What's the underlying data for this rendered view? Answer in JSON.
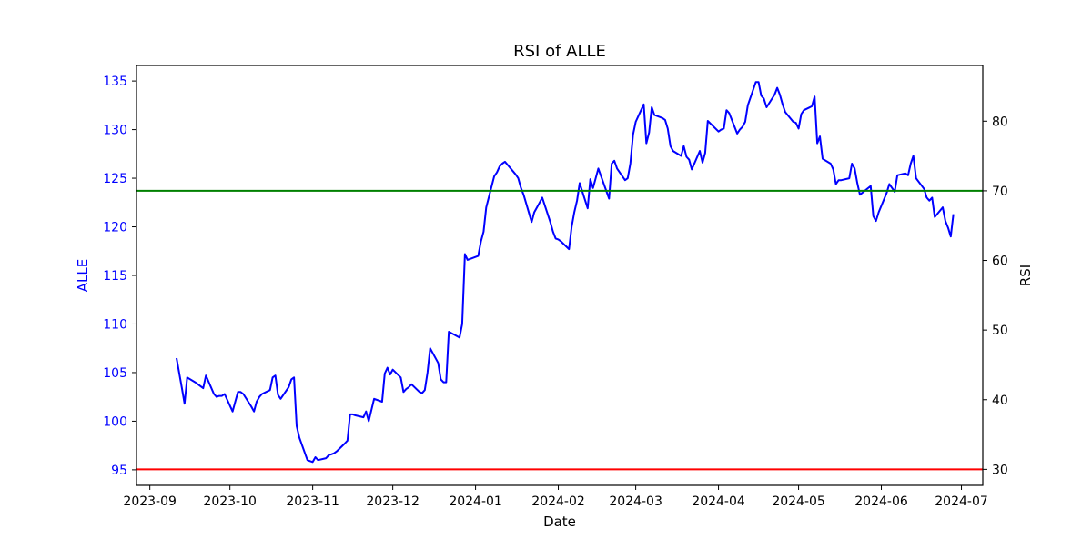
{
  "chart_data": {
    "type": "line",
    "title": "RSI of ALLE",
    "xlabel": "Date",
    "ylabel_left": "ALLE",
    "ylabel_right": "RSI",
    "x_ticks": [
      "2023-09",
      "2023-10",
      "2023-11",
      "2023-12",
      "2024-01",
      "2024-02",
      "2024-03",
      "2024-04",
      "2024-05",
      "2024-06",
      "2024-07"
    ],
    "xlim": [
      "2023-08-27",
      "2024-07-09"
    ],
    "y_left_ticks": [
      95,
      100,
      105,
      110,
      115,
      120,
      125,
      130,
      135
    ],
    "y_left_lim": [
      93.4,
      136.6
    ],
    "y_right_ticks": [
      30,
      40,
      50,
      60,
      70,
      80
    ],
    "y_right_lim": [
      27.7,
      88.0
    ],
    "reference_lines": [
      {
        "value": 70,
        "axis": "right",
        "color": "#008000"
      },
      {
        "value": 30,
        "axis": "right",
        "color": "#ff0000"
      }
    ],
    "colors": {
      "price": "#0000ff",
      "rsi": "#000000",
      "left_axis_text": "#0000ff"
    },
    "series": [
      {
        "axis": "left",
        "color": "#0000ff",
        "points": [
          [
            "2023-09-11",
            106.5
          ],
          [
            "2023-09-13",
            103.4
          ],
          [
            "2023-09-14",
            101.8
          ],
          [
            "2023-09-15",
            104.5
          ],
          [
            "2023-09-18",
            104.0
          ],
          [
            "2023-09-19",
            103.8
          ],
          [
            "2023-09-20",
            103.6
          ],
          [
            "2023-09-21",
            103.4
          ],
          [
            "2023-09-22",
            104.7
          ],
          [
            "2023-09-25",
            102.8
          ],
          [
            "2023-09-26",
            102.5
          ],
          [
            "2023-09-27",
            102.6
          ],
          [
            "2023-09-28",
            102.6
          ],
          [
            "2023-09-29",
            102.8
          ],
          [
            "2023-10-02",
            101.0
          ],
          [
            "2023-10-03",
            102.0
          ],
          [
            "2023-10-04",
            103.0
          ],
          [
            "2023-10-05",
            103.0
          ],
          [
            "2023-10-06",
            102.8
          ],
          [
            "2023-10-09",
            101.5
          ],
          [
            "2023-10-10",
            101.0
          ],
          [
            "2023-10-11",
            102.0
          ],
          [
            "2023-10-12",
            102.5
          ],
          [
            "2023-10-13",
            102.8
          ],
          [
            "2023-10-16",
            103.2
          ],
          [
            "2023-10-17",
            104.5
          ],
          [
            "2023-10-18",
            104.7
          ],
          [
            "2023-10-19",
            102.7
          ],
          [
            "2023-10-20",
            102.3
          ],
          [
            "2023-10-23",
            103.5
          ],
          [
            "2023-10-24",
            104.3
          ],
          [
            "2023-10-25",
            104.5
          ],
          [
            "2023-10-26",
            99.5
          ],
          [
            "2023-10-27",
            98.3
          ],
          [
            "2023-10-30",
            96.0
          ],
          [
            "2023-10-31",
            95.9
          ],
          [
            "2023-11-01",
            95.8
          ],
          [
            "2023-11-02",
            96.3
          ],
          [
            "2023-11-03",
            96.0
          ],
          [
            "2023-11-06",
            96.2
          ],
          [
            "2023-11-07",
            96.5
          ],
          [
            "2023-11-08",
            96.6
          ],
          [
            "2023-11-09",
            96.7
          ],
          [
            "2023-11-10",
            96.9
          ],
          [
            "2023-11-13",
            97.7
          ],
          [
            "2023-11-14",
            98.0
          ],
          [
            "2023-11-15",
            100.7
          ],
          [
            "2023-11-16",
            100.7
          ],
          [
            "2023-11-17",
            100.6
          ],
          [
            "2023-11-20",
            100.4
          ],
          [
            "2023-11-21",
            101.0
          ],
          [
            "2023-11-22",
            100.0
          ],
          [
            "2023-11-24",
            102.3
          ],
          [
            "2023-11-27",
            102.0
          ],
          [
            "2023-11-28",
            104.9
          ],
          [
            "2023-11-29",
            105.5
          ],
          [
            "2023-11-30",
            104.8
          ],
          [
            "2023-12-01",
            105.3
          ],
          [
            "2023-12-04",
            104.5
          ],
          [
            "2023-12-05",
            103.0
          ],
          [
            "2023-12-06",
            103.3
          ],
          [
            "2023-12-07",
            103.5
          ],
          [
            "2023-12-08",
            103.8
          ],
          [
            "2023-12-11",
            103.0
          ],
          [
            "2023-12-12",
            102.9
          ],
          [
            "2023-12-13",
            103.2
          ],
          [
            "2023-12-14",
            105.0
          ],
          [
            "2023-12-15",
            107.5
          ],
          [
            "2023-12-18",
            106.0
          ],
          [
            "2023-12-19",
            104.3
          ],
          [
            "2023-12-20",
            104.0
          ],
          [
            "2023-12-21",
            104.0
          ],
          [
            "2023-12-22",
            109.2
          ],
          [
            "2023-12-26",
            108.6
          ],
          [
            "2023-12-27",
            110.0
          ],
          [
            "2023-12-28",
            117.2
          ],
          [
            "2023-12-29",
            116.6
          ],
          [
            "2024-01-02",
            117.0
          ],
          [
            "2024-01-03",
            118.5
          ],
          [
            "2024-01-04",
            119.5
          ],
          [
            "2024-01-05",
            122.0
          ],
          [
            "2024-01-08",
            125.2
          ],
          [
            "2024-01-09",
            125.6
          ],
          [
            "2024-01-10",
            126.2
          ],
          [
            "2024-01-11",
            126.5
          ],
          [
            "2024-01-12",
            126.7
          ],
          [
            "2024-01-16",
            125.4
          ],
          [
            "2024-01-17",
            125.0
          ],
          [
            "2024-01-18",
            124.0
          ],
          [
            "2024-01-19",
            123.3
          ],
          [
            "2024-01-22",
            120.5
          ],
          [
            "2024-01-23",
            121.5
          ],
          [
            "2024-01-24",
            122.0
          ],
          [
            "2024-01-25",
            122.5
          ],
          [
            "2024-01-26",
            123.0
          ],
          [
            "2024-01-29",
            120.5
          ],
          [
            "2024-01-30",
            119.5
          ],
          [
            "2024-01-31",
            118.8
          ],
          [
            "2024-02-01",
            118.7
          ],
          [
            "2024-02-02",
            118.5
          ],
          [
            "2024-02-05",
            117.7
          ],
          [
            "2024-02-06",
            120.0
          ],
          [
            "2024-02-07",
            121.5
          ],
          [
            "2024-02-08",
            122.7
          ],
          [
            "2024-02-09",
            124.5
          ],
          [
            "2024-02-12",
            121.9
          ],
          [
            "2024-02-13",
            124.9
          ],
          [
            "2024-02-14",
            124.0
          ],
          [
            "2024-02-15",
            125.0
          ],
          [
            "2024-02-16",
            126.0
          ],
          [
            "2024-02-20",
            122.9
          ],
          [
            "2024-02-21",
            126.5
          ],
          [
            "2024-02-22",
            126.8
          ],
          [
            "2024-02-23",
            126.0
          ],
          [
            "2024-02-26",
            124.8
          ],
          [
            "2024-02-27",
            125.0
          ],
          [
            "2024-02-28",
            126.5
          ],
          [
            "2024-02-29",
            129.5
          ],
          [
            "2024-03-01",
            130.8
          ],
          [
            "2024-03-04",
            132.6
          ],
          [
            "2024-03-05",
            128.6
          ],
          [
            "2024-03-06",
            129.7
          ],
          [
            "2024-03-07",
            132.3
          ],
          [
            "2024-03-08",
            131.5
          ],
          [
            "2024-03-11",
            131.2
          ],
          [
            "2024-03-12",
            131.0
          ],
          [
            "2024-03-13",
            130.1
          ],
          [
            "2024-03-14",
            128.3
          ],
          [
            "2024-03-15",
            127.8
          ],
          [
            "2024-03-18",
            127.3
          ],
          [
            "2024-03-19",
            128.3
          ],
          [
            "2024-03-20",
            127.2
          ],
          [
            "2024-03-21",
            126.9
          ],
          [
            "2024-03-22",
            125.9
          ],
          [
            "2024-03-25",
            127.8
          ],
          [
            "2024-03-26",
            126.6
          ],
          [
            "2024-03-27",
            127.6
          ],
          [
            "2024-03-28",
            130.9
          ],
          [
            "2024-04-01",
            129.8
          ],
          [
            "2024-04-02",
            130.0
          ],
          [
            "2024-04-03",
            130.1
          ],
          [
            "2024-04-04",
            132.0
          ],
          [
            "2024-04-05",
            131.7
          ],
          [
            "2024-04-08",
            129.6
          ],
          [
            "2024-04-09",
            130.0
          ],
          [
            "2024-04-10",
            130.3
          ],
          [
            "2024-04-11",
            130.8
          ],
          [
            "2024-04-12",
            132.5
          ],
          [
            "2024-04-15",
            134.9
          ],
          [
            "2024-04-16",
            134.9
          ],
          [
            "2024-04-17",
            133.5
          ],
          [
            "2024-04-18",
            133.2
          ],
          [
            "2024-04-19",
            132.3
          ],
          [
            "2024-04-22",
            133.6
          ],
          [
            "2024-04-23",
            134.3
          ],
          [
            "2024-04-24",
            133.6
          ],
          [
            "2024-04-25",
            132.6
          ],
          [
            "2024-04-26",
            131.8
          ],
          [
            "2024-04-29",
            130.8
          ],
          [
            "2024-04-30",
            130.7
          ],
          [
            "2024-05-01",
            130.1
          ],
          [
            "2024-05-02",
            131.6
          ],
          [
            "2024-05-03",
            132.0
          ],
          [
            "2024-05-06",
            132.4
          ],
          [
            "2024-05-07",
            133.4
          ],
          [
            "2024-05-08",
            128.6
          ],
          [
            "2024-05-09",
            129.3
          ],
          [
            "2024-05-10",
            127.0
          ],
          [
            "2024-05-13",
            126.5
          ],
          [
            "2024-05-14",
            125.9
          ],
          [
            "2024-05-15",
            124.4
          ],
          [
            "2024-05-16",
            124.8
          ],
          [
            "2024-05-17",
            124.8
          ],
          [
            "2024-05-20",
            125.0
          ],
          [
            "2024-05-21",
            126.5
          ],
          [
            "2024-05-22",
            126.0
          ],
          [
            "2024-05-23",
            124.5
          ],
          [
            "2024-05-24",
            123.3
          ],
          [
            "2024-05-28",
            124.2
          ],
          [
            "2024-05-29",
            121.1
          ],
          [
            "2024-05-30",
            120.6
          ],
          [
            "2024-05-31",
            121.5
          ],
          [
            "2024-06-03",
            123.5
          ],
          [
            "2024-06-04",
            124.4
          ],
          [
            "2024-06-05",
            124.0
          ],
          [
            "2024-06-06",
            123.6
          ],
          [
            "2024-06-07",
            125.3
          ],
          [
            "2024-06-10",
            125.5
          ],
          [
            "2024-06-11",
            125.3
          ],
          [
            "2024-06-12",
            126.5
          ],
          [
            "2024-06-13",
            127.3
          ],
          [
            "2024-06-14",
            125.0
          ],
          [
            "2024-06-17",
            123.9
          ],
          [
            "2024-06-18",
            123.0
          ],
          [
            "2024-06-19",
            122.7
          ],
          [
            "2024-06-20",
            123.0
          ],
          [
            "2024-06-21",
            121.0
          ],
          [
            "2024-06-24",
            122.0
          ],
          [
            "2024-06-25",
            120.6
          ],
          [
            "2024-06-26",
            119.9
          ],
          [
            "2024-06-27",
            119.0
          ],
          [
            "2024-06-28",
            121.3
          ]
        ]
      }
    ]
  }
}
